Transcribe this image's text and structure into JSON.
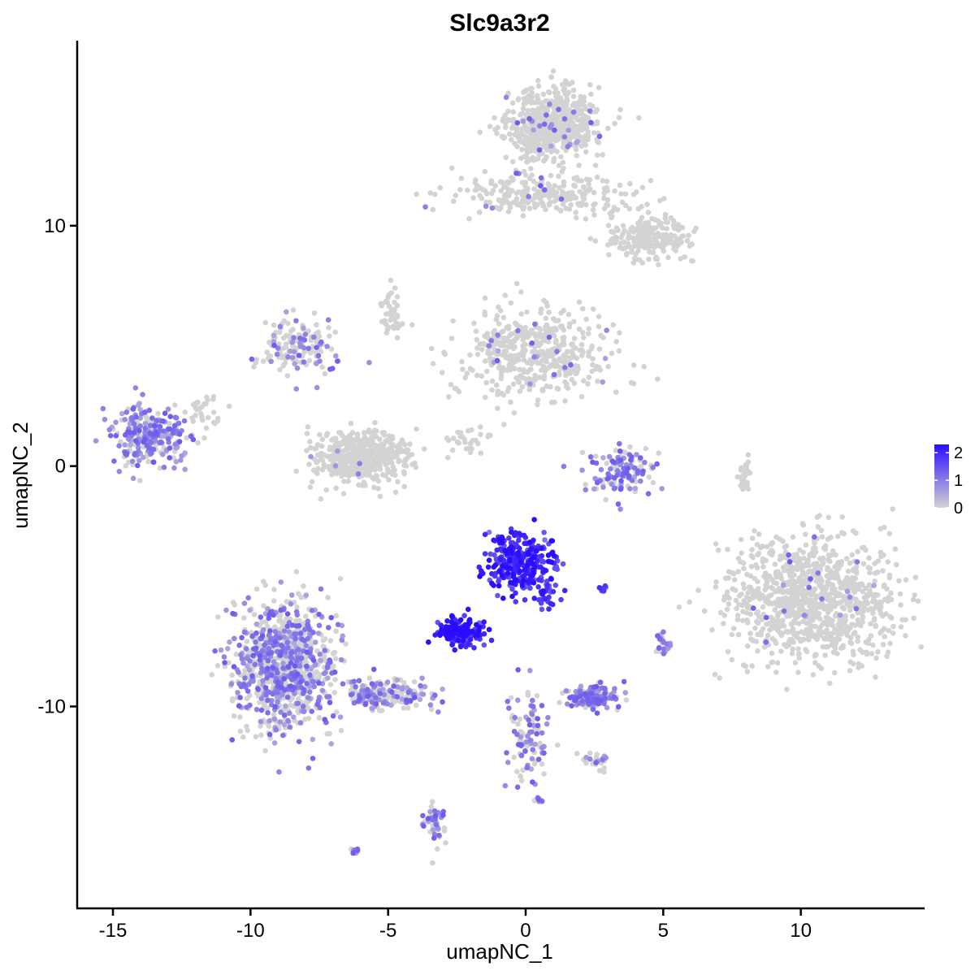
{
  "chart_data": {
    "type": "scatter",
    "title": "Slc9a3r2",
    "xlabel": "umapNC_1",
    "ylabel": "umapNC_2",
    "xlim": [
      -16.3,
      14.5
    ],
    "ylim": [
      -18.4,
      17.7
    ],
    "xticks": [
      -15,
      -10,
      -5,
      0,
      5,
      10
    ],
    "yticks": [
      -10,
      0,
      10
    ],
    "xtick_labels": [
      "-15",
      "-10",
      "-5",
      "0",
      "5",
      "10"
    ],
    "ytick_labels": [
      "-10",
      "0",
      "10"
    ],
    "grid": false,
    "legend": {
      "position": "right",
      "type": "colorbar",
      "min": 0,
      "max": 2.3,
      "ticks": [
        0,
        1,
        2
      ],
      "tick_labels": [
        "0",
        "1",
        "2"
      ],
      "low_color": "#d3d3d3",
      "high_color": "#2a0dff"
    },
    "clusters": [
      {
        "cx": 0.9,
        "cy": 14.2,
        "sx": 1.1,
        "sy": 1.0,
        "n": 650,
        "expr": 0.03
      },
      {
        "cx": 0.6,
        "cy": 11.3,
        "sx": 2.2,
        "sy": 0.6,
        "n": 260,
        "expr": 0.02
      },
      {
        "cx": 4.6,
        "cy": 9.5,
        "sx": 1.0,
        "sy": 0.6,
        "n": 220,
        "expr": 0.0
      },
      {
        "cx": -8.3,
        "cy": 5.0,
        "sx": 1.0,
        "sy": 0.9,
        "n": 150,
        "expr": 0.25
      },
      {
        "cx": 0.3,
        "cy": 4.6,
        "sx": 1.8,
        "sy": 1.2,
        "n": 480,
        "expr": 0.05
      },
      {
        "cx": -6.0,
        "cy": 0.4,
        "sx": 1.2,
        "sy": 0.8,
        "n": 450,
        "expr": 0.02
      },
      {
        "cx": -13.7,
        "cy": 1.2,
        "sx": 0.9,
        "sy": 0.8,
        "n": 260,
        "expr": 0.6
      },
      {
        "cx": 3.5,
        "cy": -0.2,
        "sx": 0.8,
        "sy": 0.7,
        "n": 130,
        "expr": 0.55
      },
      {
        "cx": -0.2,
        "cy": -4.0,
        "sx": 0.8,
        "sy": 0.8,
        "n": 300,
        "expr": 1.9
      },
      {
        "cx": 0.7,
        "cy": -5.3,
        "sx": 0.35,
        "sy": 0.5,
        "n": 40,
        "expr": 1.7
      },
      {
        "cx": -2.4,
        "cy": -6.9,
        "sx": 0.5,
        "sy": 0.4,
        "n": 170,
        "expr": 2.1
      },
      {
        "cx": 10.4,
        "cy": -5.5,
        "sx": 2.0,
        "sy": 1.7,
        "n": 1000,
        "expr": 0.03
      },
      {
        "cx": -8.8,
        "cy": -8.3,
        "sx": 1.2,
        "sy": 1.7,
        "n": 900,
        "expr": 0.45
      },
      {
        "cx": -5.2,
        "cy": -9.5,
        "sx": 1.1,
        "sy": 0.45,
        "n": 200,
        "expr": 0.45
      },
      {
        "cx": 2.4,
        "cy": -9.6,
        "sx": 0.6,
        "sy": 0.3,
        "n": 150,
        "expr": 0.7
      },
      {
        "cx": 0.1,
        "cy": -11.3,
        "sx": 0.5,
        "sy": 1.2,
        "n": 100,
        "expr": 0.55
      },
      {
        "cx": -3.3,
        "cy": -14.8,
        "sx": 0.25,
        "sy": 0.7,
        "n": 50,
        "expr": 0.55
      },
      {
        "cx": 8.0,
        "cy": -0.4,
        "sx": 0.15,
        "sy": 0.6,
        "n": 30,
        "expr": 0.0
      },
      {
        "cx": 5.0,
        "cy": -7.5,
        "sx": 0.2,
        "sy": 0.35,
        "n": 25,
        "expr": 0.6
      },
      {
        "cx": 2.6,
        "cy": -12.3,
        "sx": 0.3,
        "sy": 0.3,
        "n": 25,
        "expr": 0.4
      },
      {
        "cx": -6.2,
        "cy": -16.0,
        "sx": 0.1,
        "sy": 0.1,
        "n": 8,
        "expr": 0.9
      },
      {
        "cx": 0.5,
        "cy": -13.9,
        "sx": 0.1,
        "sy": 0.1,
        "n": 8,
        "expr": 0.9
      },
      {
        "cx": 2.8,
        "cy": -5.1,
        "sx": 0.15,
        "sy": 0.1,
        "n": 10,
        "expr": 1.5
      },
      {
        "cx": -2.0,
        "cy": 1.0,
        "sx": 0.7,
        "sy": 0.5,
        "n": 30,
        "expr": 0.0
      },
      {
        "cx": -4.9,
        "cy": 6.3,
        "sx": 0.3,
        "sy": 0.9,
        "n": 40,
        "expr": 0.0
      },
      {
        "cx": -11.8,
        "cy": 2.2,
        "sx": 0.4,
        "sy": 0.5,
        "n": 30,
        "expr": 0.0
      }
    ]
  }
}
